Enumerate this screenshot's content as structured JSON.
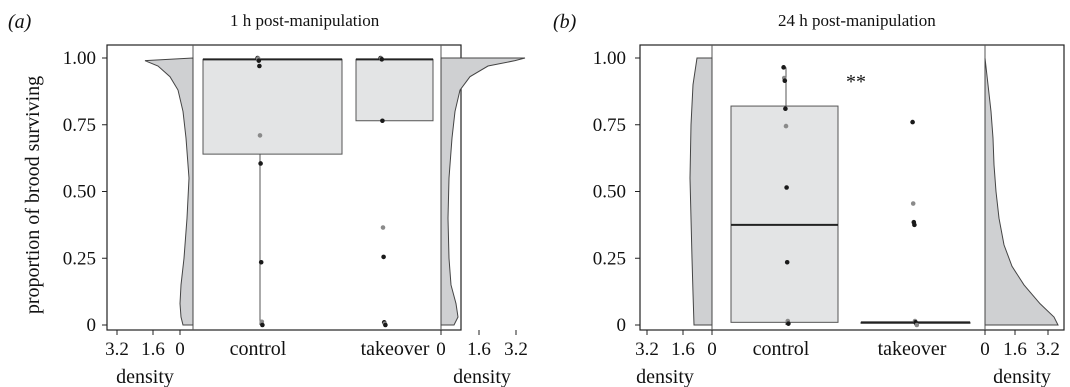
{
  "chart_data": [
    {
      "panel_label": "(a)",
      "type": "box",
      "title": "1 h post-manipulation",
      "ylabel": "proportion of brood surviving",
      "ylim": [
        0,
        1
      ],
      "yticks": [
        "1.00",
        "0.75",
        "0.50",
        "0.25",
        "0"
      ],
      "categories": [
        "control",
        "takeover"
      ],
      "boxes": [
        {
          "category": "control",
          "q1": 0.64,
          "median": 0.995,
          "q3": 0.995,
          "whisker_low": 0.0,
          "whisker_high": 1.0
        },
        {
          "category": "takeover",
          "q1": 0.765,
          "median": 0.995,
          "q3": 0.995,
          "whisker_low": 0.765,
          "whisker_high": 1.0
        }
      ],
      "points": [
        {
          "category": "control",
          "values": [
            1.0,
            0.998,
            0.99,
            0.97,
            0.71,
            0.605,
            0.235,
            0.012,
            0.0
          ]
        },
        {
          "category": "takeover",
          "values": [
            1.0,
            0.998,
            0.995,
            0.765,
            0.365,
            0.255,
            0.01,
            0.005,
            0.0
          ]
        }
      ],
      "density_left": {
        "category": "control",
        "xlabel": "density",
        "ticks": [
          "3.2",
          "1.6",
          "0"
        ]
      },
      "density_right": {
        "category": "takeover",
        "xlabel": "density",
        "ticks": [
          "0",
          "1.6",
          "3.2"
        ]
      }
    },
    {
      "panel_label": "(b)",
      "type": "box",
      "title": "24 h post-manipulation",
      "ylim": [
        0,
        1
      ],
      "yticks": [
        "1.00",
        "0.75",
        "0.50",
        "0.25",
        "0"
      ],
      "categories": [
        "control",
        "takeover"
      ],
      "annotation": "**",
      "boxes": [
        {
          "category": "control",
          "q1": 0.01,
          "median": 0.375,
          "q3": 0.82,
          "whisker_low": 0.0,
          "whisker_high": 0.965
        },
        {
          "category": "takeover",
          "q1": 0.01,
          "median": 0.01,
          "q3": 0.01,
          "whisker_low": 0.0,
          "whisker_high": 0.01
        }
      ],
      "points": [
        {
          "category": "control",
          "values": [
            0.965,
            0.925,
            0.915,
            0.81,
            0.745,
            0.515,
            0.235,
            0.015,
            0.005
          ]
        },
        {
          "category": "takeover",
          "values": [
            0.76,
            0.455,
            0.385,
            0.375,
            0.015,
            0.01,
            0.005,
            0.0
          ]
        }
      ],
      "density_left": {
        "category": "control",
        "xlabel": "density",
        "ticks": [
          "3.2",
          "1.6",
          "0"
        ]
      },
      "density_right": {
        "category": "takeover",
        "xlabel": "density",
        "ticks": [
          "0",
          "1.6",
          "3.2"
        ]
      }
    }
  ]
}
